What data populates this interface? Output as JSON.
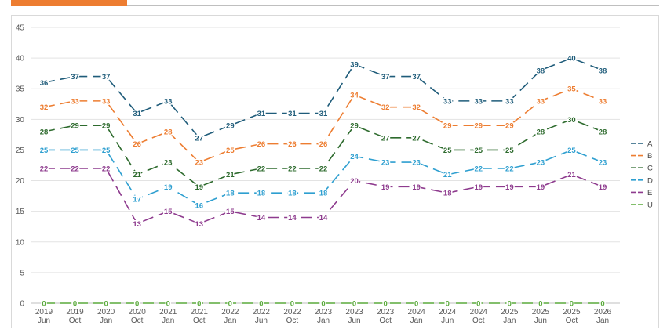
{
  "chart_data": {
    "type": "line",
    "title": "",
    "xlabel": "",
    "ylabel": "",
    "ylim": [
      0,
      45
    ],
    "yticks": [
      0,
      5,
      10,
      15,
      20,
      25,
      30,
      35,
      40,
      45
    ],
    "grid": true,
    "legend_position": "right",
    "line_style": "dashed",
    "categories": [
      [
        "2019",
        "Jun"
      ],
      [
        "2019",
        "Oct"
      ],
      [
        "2020",
        "Jan"
      ],
      [
        "2020",
        "Oct"
      ],
      [
        "2021",
        "Jan"
      ],
      [
        "2021",
        "Oct"
      ],
      [
        "2022",
        "Jan"
      ],
      [
        "2022",
        "Jun"
      ],
      [
        "2022",
        "Oct"
      ],
      [
        "2023",
        "Jan"
      ],
      [
        "2023",
        "Jun"
      ],
      [
        "2023",
        "Oct"
      ],
      [
        "2024",
        "Jan"
      ],
      [
        "2024",
        "Jun"
      ],
      [
        "2024",
        "Oct"
      ],
      [
        "2025",
        "Jan"
      ],
      [
        "2025",
        "Jun"
      ],
      [
        "2025",
        "Oct"
      ],
      [
        "2026",
        "Jan"
      ]
    ],
    "series": [
      {
        "name": "A",
        "color": "#1F5C7A",
        "values": [
          36,
          37,
          37,
          31,
          33,
          27,
          29,
          31,
          31,
          31,
          39,
          37,
          37,
          33,
          33,
          33,
          38,
          40,
          38
        ]
      },
      {
        "name": "B",
        "color": "#ED7D31",
        "values": [
          32,
          33,
          33,
          26,
          28,
          23,
          25,
          26,
          26,
          26,
          34,
          32,
          32,
          29,
          29,
          29,
          33,
          35,
          33
        ]
      },
      {
        "name": "C",
        "color": "#2E6B2E",
        "values": [
          28,
          29,
          29,
          21,
          23,
          19,
          21,
          22,
          22,
          22,
          29,
          27,
          27,
          25,
          25,
          25,
          28,
          30,
          28
        ]
      },
      {
        "name": "D",
        "color": "#2E9FD0",
        "values": [
          25,
          25,
          25,
          17,
          19,
          16,
          18,
          18,
          18,
          18,
          24,
          23,
          23,
          21,
          22,
          22,
          23,
          25,
          23
        ]
      },
      {
        "name": "E",
        "color": "#8E3B8E",
        "values": [
          22,
          22,
          22,
          13,
          15,
          13,
          15,
          14,
          14,
          14,
          20,
          19,
          19,
          18,
          19,
          19,
          19,
          21,
          19
        ]
      },
      {
        "name": "U",
        "color": "#5AAA3C",
        "values": [
          0,
          0,
          0,
          0,
          0,
          0,
          0,
          0,
          0,
          0,
          0,
          0,
          0,
          0,
          0,
          0,
          0,
          0,
          0
        ]
      }
    ]
  }
}
